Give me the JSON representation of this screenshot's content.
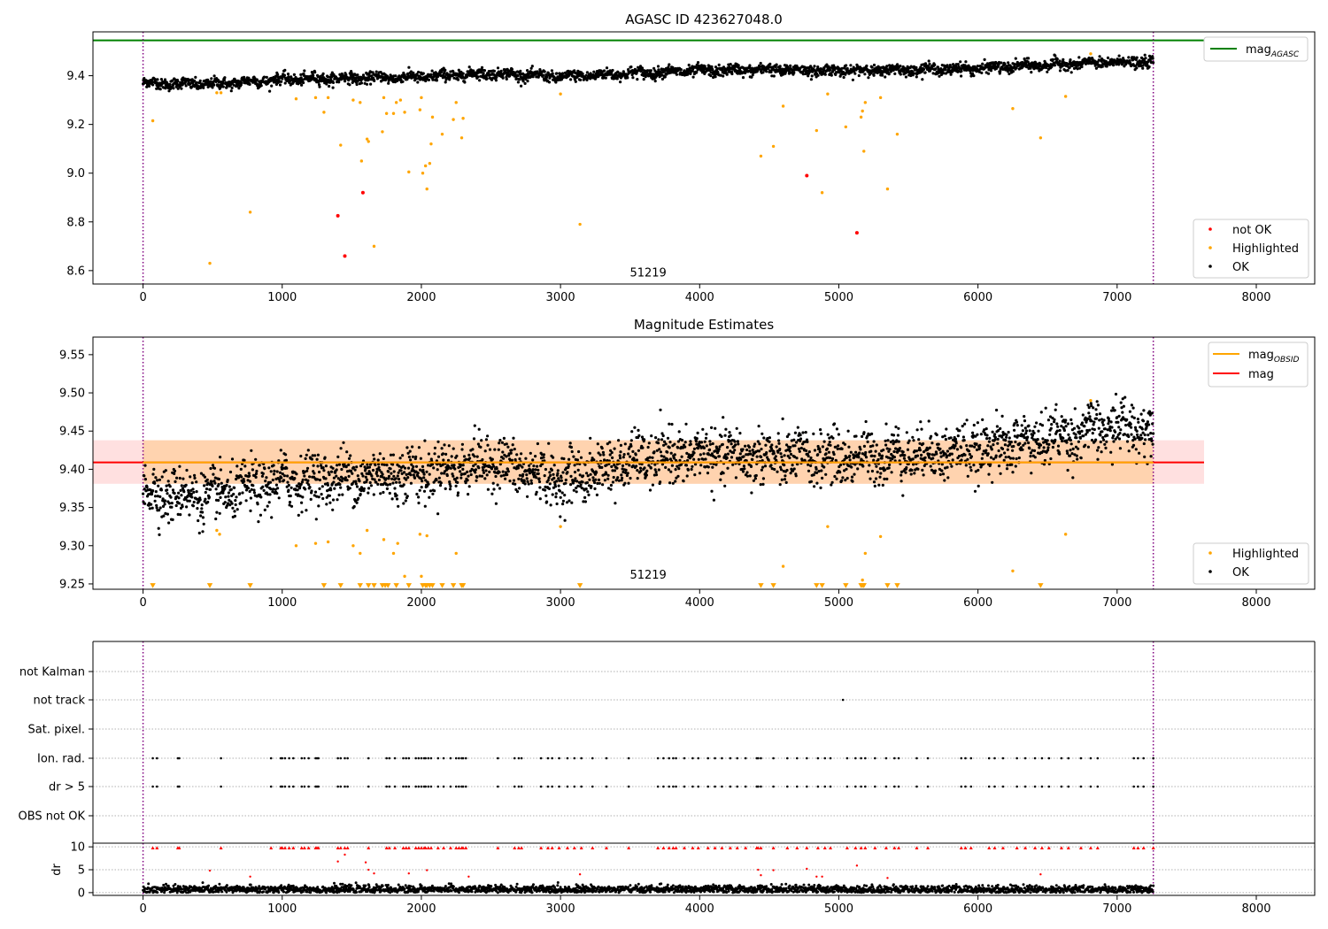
{
  "chart_data": [
    {
      "type": "scatter",
      "title": "AGASC ID 423627048.0",
      "xlim": [
        -360,
        8420
      ],
      "ylim": [
        8.545,
        9.58
      ],
      "xticks": [
        0,
        1000,
        2000,
        3000,
        4000,
        5000,
        6000,
        7000,
        8000
      ],
      "xtick_labels": [
        "0",
        "1000",
        "2000",
        "3000",
        "4000",
        "5000",
        "6000",
        "7000",
        "8000"
      ],
      "yticks": [
        8.6,
        8.8,
        9.0,
        9.2,
        9.4
      ],
      "ytick_labels": [
        "8.6",
        "8.8",
        "9.0",
        "9.2",
        "9.4"
      ],
      "vlines": [
        0,
        7260
      ],
      "annotation": {
        "text": "51219",
        "x": 3630,
        "y": 8.575
      },
      "mag_agasc": 9.545,
      "legend_top": {
        "position": "top-right",
        "items": [
          {
            "label": "mag",
            "sub": "AGASC",
            "color": "#008000"
          }
        ]
      },
      "legend_bottom": {
        "position": "bottom-right",
        "items": [
          {
            "label": "not OK",
            "color": "#ff0000"
          },
          {
            "label": "Highlighted",
            "color": "#ffa500"
          },
          {
            "label": "OK",
            "color": "#000000"
          }
        ]
      },
      "series": [
        {
          "name": "OK",
          "color": "#000000",
          "trend": [
            [
              0,
              9.37
            ],
            [
              500,
              9.365
            ],
            [
              1000,
              9.385
            ],
            [
              1500,
              9.39
            ],
            [
              2000,
              9.395
            ],
            [
              2500,
              9.41
            ],
            [
              3000,
              9.395
            ],
            [
              3500,
              9.41
            ],
            [
              4000,
              9.42
            ],
            [
              4500,
              9.425
            ],
            [
              5000,
              9.42
            ],
            [
              5500,
              9.425
            ],
            [
              6000,
              9.43
            ],
            [
              6500,
              9.445
            ],
            [
              7000,
              9.455
            ],
            [
              7260,
              9.455
            ]
          ]
        },
        {
          "name": "Highlighted",
          "color": "#ffa500",
          "points": [
            [
              70,
              9.215
            ],
            [
              480,
              8.63
            ],
            [
              530,
              9.33
            ],
            [
              560,
              9.33
            ],
            [
              770,
              8.84
            ],
            [
              1100,
              9.305
            ],
            [
              1240,
              9.31
            ],
            [
              1300,
              9.25
            ],
            [
              1330,
              9.31
            ],
            [
              1420,
              9.115
            ],
            [
              1510,
              9.3
            ],
            [
              1560,
              9.29
            ],
            [
              1570,
              9.05
            ],
            [
              1610,
              9.14
            ],
            [
              1620,
              9.13
            ],
            [
              1660,
              8.7
            ],
            [
              1720,
              9.17
            ],
            [
              1730,
              9.31
            ],
            [
              1750,
              9.245
            ],
            [
              1800,
              9.245
            ],
            [
              1820,
              9.29
            ],
            [
              1850,
              9.3
            ],
            [
              1880,
              9.25
            ],
            [
              1910,
              9.005
            ],
            [
              1990,
              9.26
            ],
            [
              2000,
              9.31
            ],
            [
              2010,
              9.0
            ],
            [
              2030,
              9.03
            ],
            [
              2040,
              8.935
            ],
            [
              2060,
              9.04
            ],
            [
              2070,
              9.12
            ],
            [
              2080,
              9.23
            ],
            [
              2150,
              9.16
            ],
            [
              2230,
              9.22
            ],
            [
              2250,
              9.29
            ],
            [
              2290,
              9.145
            ],
            [
              2300,
              9.225
            ],
            [
              3000,
              9.325
            ],
            [
              3140,
              8.79
            ],
            [
              4440,
              9.07
            ],
            [
              4530,
              9.11
            ],
            [
              4600,
              9.275
            ],
            [
              4840,
              9.175
            ],
            [
              4880,
              8.92
            ],
            [
              4920,
              9.325
            ],
            [
              5050,
              9.19
            ],
            [
              5160,
              9.23
            ],
            [
              5170,
              9.255
            ],
            [
              5180,
              9.09
            ],
            [
              5190,
              9.29
            ],
            [
              5300,
              9.31
            ],
            [
              5350,
              8.935
            ],
            [
              5420,
              9.16
            ],
            [
              6250,
              9.265
            ],
            [
              6450,
              9.145
            ],
            [
              6630,
              9.315
            ],
            [
              6810,
              9.49
            ]
          ]
        },
        {
          "name": "not OK",
          "color": "#ff0000",
          "points": [
            [
              1400,
              8.825
            ],
            [
              1450,
              8.66
            ],
            [
              1580,
              8.92
            ],
            [
              4770,
              8.99
            ],
            [
              5130,
              8.755
            ]
          ]
        }
      ]
    },
    {
      "type": "scatter",
      "title": "Magnitude Estimates",
      "xlim": [
        -360,
        8420
      ],
      "ylim": [
        9.243,
        9.573
      ],
      "xticks": [
        0,
        1000,
        2000,
        3000,
        4000,
        5000,
        6000,
        7000,
        8000
      ],
      "xtick_labels": [
        "0",
        "1000",
        "2000",
        "3000",
        "4000",
        "5000",
        "6000",
        "7000",
        "8000"
      ],
      "yticks": [
        9.25,
        9.3,
        9.35,
        9.4,
        9.45,
        9.5,
        9.55
      ],
      "ytick_labels": [
        "9.25",
        "9.30",
        "9.35",
        "9.40",
        "9.45",
        "9.50",
        "9.55"
      ],
      "vlines": [
        0,
        7260
      ],
      "annotation": {
        "text": "51219",
        "x": 3630,
        "y": 9.257
      },
      "mag": 9.409,
      "mag_band": [
        9.381,
        9.438
      ],
      "mag_obsid": 9.409,
      "mag_obsid_band": [
        9.381,
        9.438
      ],
      "legend_top": {
        "position": "top-right",
        "items": [
          {
            "label": "mag",
            "sub": "OBSID",
            "color": "#ffa500"
          },
          {
            "label": "mag",
            "sub": "",
            "color": "#ff0000"
          }
        ]
      },
      "legend_bottom": {
        "position": "bottom-right",
        "items": [
          {
            "label": "Highlighted",
            "color": "#ffa500"
          },
          {
            "label": "OK",
            "color": "#000000"
          }
        ]
      },
      "series": [
        {
          "name": "OK",
          "color": "#000000",
          "trend": [
            [
              0,
              9.37
            ],
            [
              500,
              9.365
            ],
            [
              1000,
              9.385
            ],
            [
              1500,
              9.39
            ],
            [
              2000,
              9.395
            ],
            [
              2500,
              9.41
            ],
            [
              3000,
              9.385
            ],
            [
              3500,
              9.41
            ],
            [
              4000,
              9.42
            ],
            [
              4500,
              9.415
            ],
            [
              5000,
              9.415
            ],
            [
              5500,
              9.42
            ],
            [
              6000,
              9.425
            ],
            [
              6500,
              9.44
            ],
            [
              7000,
              9.455
            ],
            [
              7260,
              9.455
            ]
          ]
        },
        {
          "name": "Highlighted",
          "color": "#ffa500",
          "points": [
            [
              530,
              9.32
            ],
            [
              550,
              9.315
            ],
            [
              1100,
              9.3
            ],
            [
              1240,
              9.303
            ],
            [
              1330,
              9.305
            ],
            [
              1510,
              9.3
            ],
            [
              1560,
              9.29
            ],
            [
              1610,
              9.32
            ],
            [
              1730,
              9.308
            ],
            [
              1800,
              9.29
            ],
            [
              1830,
              9.303
            ],
            [
              1880,
              9.26
            ],
            [
              1990,
              9.315
            ],
            [
              2000,
              9.26
            ],
            [
              2040,
              9.313
            ],
            [
              2250,
              9.29
            ],
            [
              3000,
              9.325
            ],
            [
              4600,
              9.273
            ],
            [
              4920,
              9.325
            ],
            [
              5170,
              9.255
            ],
            [
              5190,
              9.29
            ],
            [
              5300,
              9.312
            ],
            [
              6250,
              9.267
            ],
            [
              6630,
              9.315
            ],
            [
              6810,
              9.49
            ]
          ]
        },
        {
          "name": "below-range",
          "color": "#ffa500",
          "marker": "triangle-down",
          "x": [
            70,
            480,
            770,
            1300,
            1420,
            1560,
            1620,
            1660,
            1720,
            1740,
            1760,
            1820,
            1910,
            2010,
            2030,
            2040,
            2060,
            2080,
            2150,
            2230,
            2290,
            2300,
            3140,
            4440,
            4530,
            4840,
            4880,
            5050,
            5160,
            5170,
            5180,
            5350,
            5420,
            6450
          ],
          "y": 9.2475
        }
      ]
    },
    {
      "type": "scatter",
      "xlim": [
        -360,
        8420
      ],
      "xticks": [
        0,
        1000,
        2000,
        3000,
        4000,
        5000,
        6000,
        7000,
        8000
      ],
      "xtick_labels": [
        "0",
        "1000",
        "2000",
        "3000",
        "4000",
        "5000",
        "6000",
        "7000",
        "8000"
      ],
      "vlines": [
        0,
        7260
      ],
      "flag_rows": [
        "not Kalman",
        "not track",
        "Sat. pixel.",
        "Ion. rad.",
        "dr > 5",
        "OBS not OK"
      ],
      "flag_points": {
        "not track": [
          5030
        ],
        "Ion. rad.": [
          70,
          100,
          250,
          260,
          560,
          920,
          990,
          1000,
          1020,
          1050,
          1080,
          1140,
          1160,
          1190,
          1240,
          1250,
          1260,
          1400,
          1420,
          1450,
          1470,
          1620,
          1750,
          1770,
          1810,
          1870,
          1890,
          1910,
          1960,
          1980,
          2000,
          2020,
          2030,
          2050,
          2070,
          2120,
          2160,
          2210,
          2250,
          2270,
          2290,
          2300,
          2320,
          2550,
          2670,
          2700,
          2720,
          2860,
          2910,
          2940,
          2990,
          3050,
          3100,
          3150,
          3230,
          3330,
          3490,
          3700,
          3740,
          3780,
          3810,
          3830,
          3890,
          3950,
          3990,
          4060,
          4110,
          4160,
          4220,
          4270,
          4330,
          4410,
          4420,
          4440,
          4530,
          4630,
          4700,
          4770,
          4850,
          4900,
          4940,
          5060,
          5120,
          5160,
          5190,
          5260,
          5340,
          5400,
          5430,
          5560,
          5640,
          5880,
          5910,
          5950,
          6080,
          6120,
          6180,
          6280,
          6340,
          6410,
          6460,
          6510,
          6600,
          6650,
          6740,
          6810,
          6860,
          7120,
          7150,
          7190,
          7260
        ],
        "dr > 5": [
          70,
          100,
          250,
          260,
          560,
          920,
          990,
          1000,
          1020,
          1050,
          1080,
          1140,
          1160,
          1190,
          1240,
          1250,
          1260,
          1400,
          1420,
          1450,
          1470,
          1620,
          1750,
          1770,
          1810,
          1870,
          1890,
          1910,
          1960,
          1980,
          2000,
          2020,
          2030,
          2050,
          2070,
          2120,
          2160,
          2210,
          2250,
          2270,
          2290,
          2300,
          2320,
          2550,
          2670,
          2700,
          2720,
          2860,
          2910,
          2940,
          2990,
          3050,
          3100,
          3150,
          3230,
          3330,
          3490,
          3700,
          3740,
          3780,
          3810,
          3830,
          3890,
          3950,
          3990,
          4060,
          4110,
          4160,
          4220,
          4270,
          4330,
          4410,
          4420,
          4440,
          4530,
          4630,
          4700,
          4770,
          4850,
          4900,
          4940,
          5060,
          5120,
          5160,
          5190,
          5260,
          5340,
          5400,
          5430,
          5560,
          5640,
          5880,
          5910,
          5950,
          6080,
          6120,
          6180,
          6280,
          6340,
          6410,
          6460,
          6510,
          6600,
          6650,
          6740,
          6810,
          6860,
          7120,
          7150,
          7190,
          7260
        ]
      }
    },
    {
      "type": "scatter",
      "ylabel": "dr",
      "xlim": [
        -360,
        8420
      ],
      "ylim": [
        -0.6,
        10.8
      ],
      "yticks": [
        0,
        5,
        10
      ],
      "ytick_labels": [
        "0",
        "5",
        "10"
      ],
      "xticks": [
        0,
        1000,
        2000,
        3000,
        4000,
        5000,
        6000,
        7000,
        8000
      ],
      "xtick_labels": [
        "0",
        "1000",
        "2000",
        "3000",
        "4000",
        "5000",
        "6000",
        "7000",
        "8000"
      ],
      "vlines": [
        0,
        7260
      ],
      "dr_cap": 9.8,
      "dr_mid": [
        [
          480,
          4.8
        ],
        [
          770,
          3.5
        ],
        [
          1400,
          6.8
        ],
        [
          1450,
          8.3
        ],
        [
          1600,
          6.6
        ],
        [
          1620,
          5.0
        ],
        [
          1660,
          4.2
        ],
        [
          1910,
          4.2
        ],
        [
          2040,
          4.9
        ],
        [
          2340,
          3.5
        ],
        [
          3140,
          4.0
        ],
        [
          4420,
          5.0
        ],
        [
          4440,
          3.8
        ],
        [
          4530,
          4.9
        ],
        [
          4770,
          5.2
        ],
        [
          4840,
          3.5
        ],
        [
          4880,
          3.5
        ],
        [
          5130,
          5.9
        ],
        [
          5350,
          3.2
        ],
        [
          6450,
          4.0
        ]
      ]
    }
  ]
}
